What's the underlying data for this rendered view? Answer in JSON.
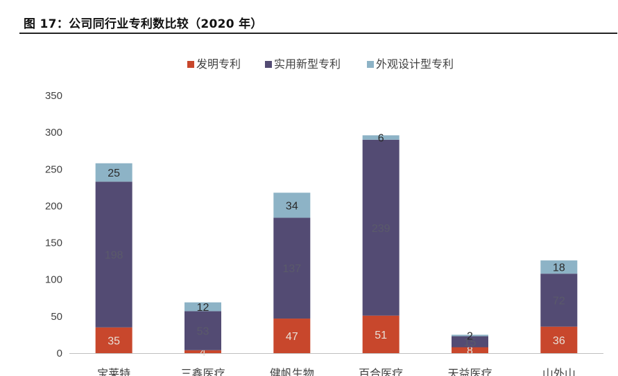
{
  "figure": {
    "title": "图 17：公司同行业专利数比较（2020 年）"
  },
  "colors": {
    "invention": "#c8472c",
    "utility": "#534b73",
    "design": "#8db3c6"
  },
  "chart_data": {
    "type": "bar",
    "stacked": true,
    "title": "",
    "xlabel": "",
    "ylabel": "",
    "ylim": [
      0,
      350
    ],
    "yticks": [
      0,
      50,
      100,
      150,
      200,
      250,
      300,
      350
    ],
    "legend_position": "top-center",
    "grid": false,
    "categories": [
      "宝莱特",
      "三鑫医疗",
      "健帆生物",
      "百合医疗",
      "天益医疗",
      "山外山"
    ],
    "series": [
      {
        "name": "发明专利",
        "values": [
          35,
          4,
          47,
          51,
          8,
          36
        ]
      },
      {
        "name": "实用新型专利",
        "values": [
          198,
          53,
          137,
          239,
          15,
          72
        ]
      },
      {
        "name": "外观设计型专利",
        "values": [
          25,
          12,
          34,
          6,
          2,
          18
        ]
      }
    ]
  }
}
